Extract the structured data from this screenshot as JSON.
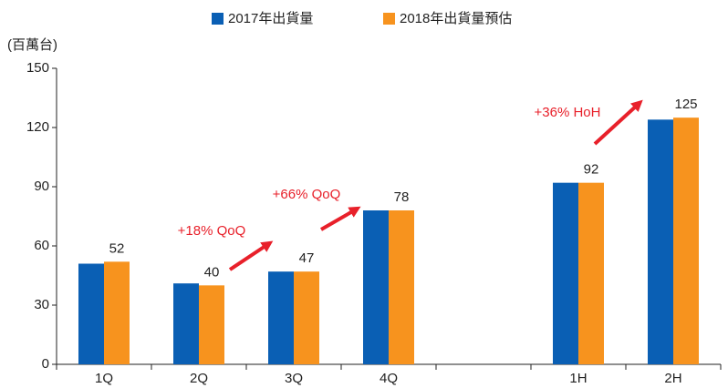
{
  "chart_data": {
    "type": "bar",
    "y_axis_label": "(百萬台)",
    "categories": [
      "1Q",
      "2Q",
      "3Q",
      "4Q",
      null,
      "1H",
      "2H"
    ],
    "series": [
      {
        "name": "2017年出貨量",
        "color": "#0a5fb4",
        "values": [
          51,
          41,
          47,
          78,
          null,
          92,
          124
        ]
      },
      {
        "name": "2018年出貨量預估",
        "color": "#f7931e",
        "values": [
          52,
          40,
          47,
          78,
          null,
          92,
          125
        ]
      }
    ],
    "labeled_series": 1,
    "ylim": [
      0,
      150
    ],
    "yticks": [
      0,
      30,
      60,
      90,
      120,
      150
    ],
    "grid": false,
    "legend": "top",
    "annotations": [
      "+18% QoQ",
      "+66% QoQ",
      "+36% HoH"
    ],
    "annotation_color": "#e8202a"
  }
}
